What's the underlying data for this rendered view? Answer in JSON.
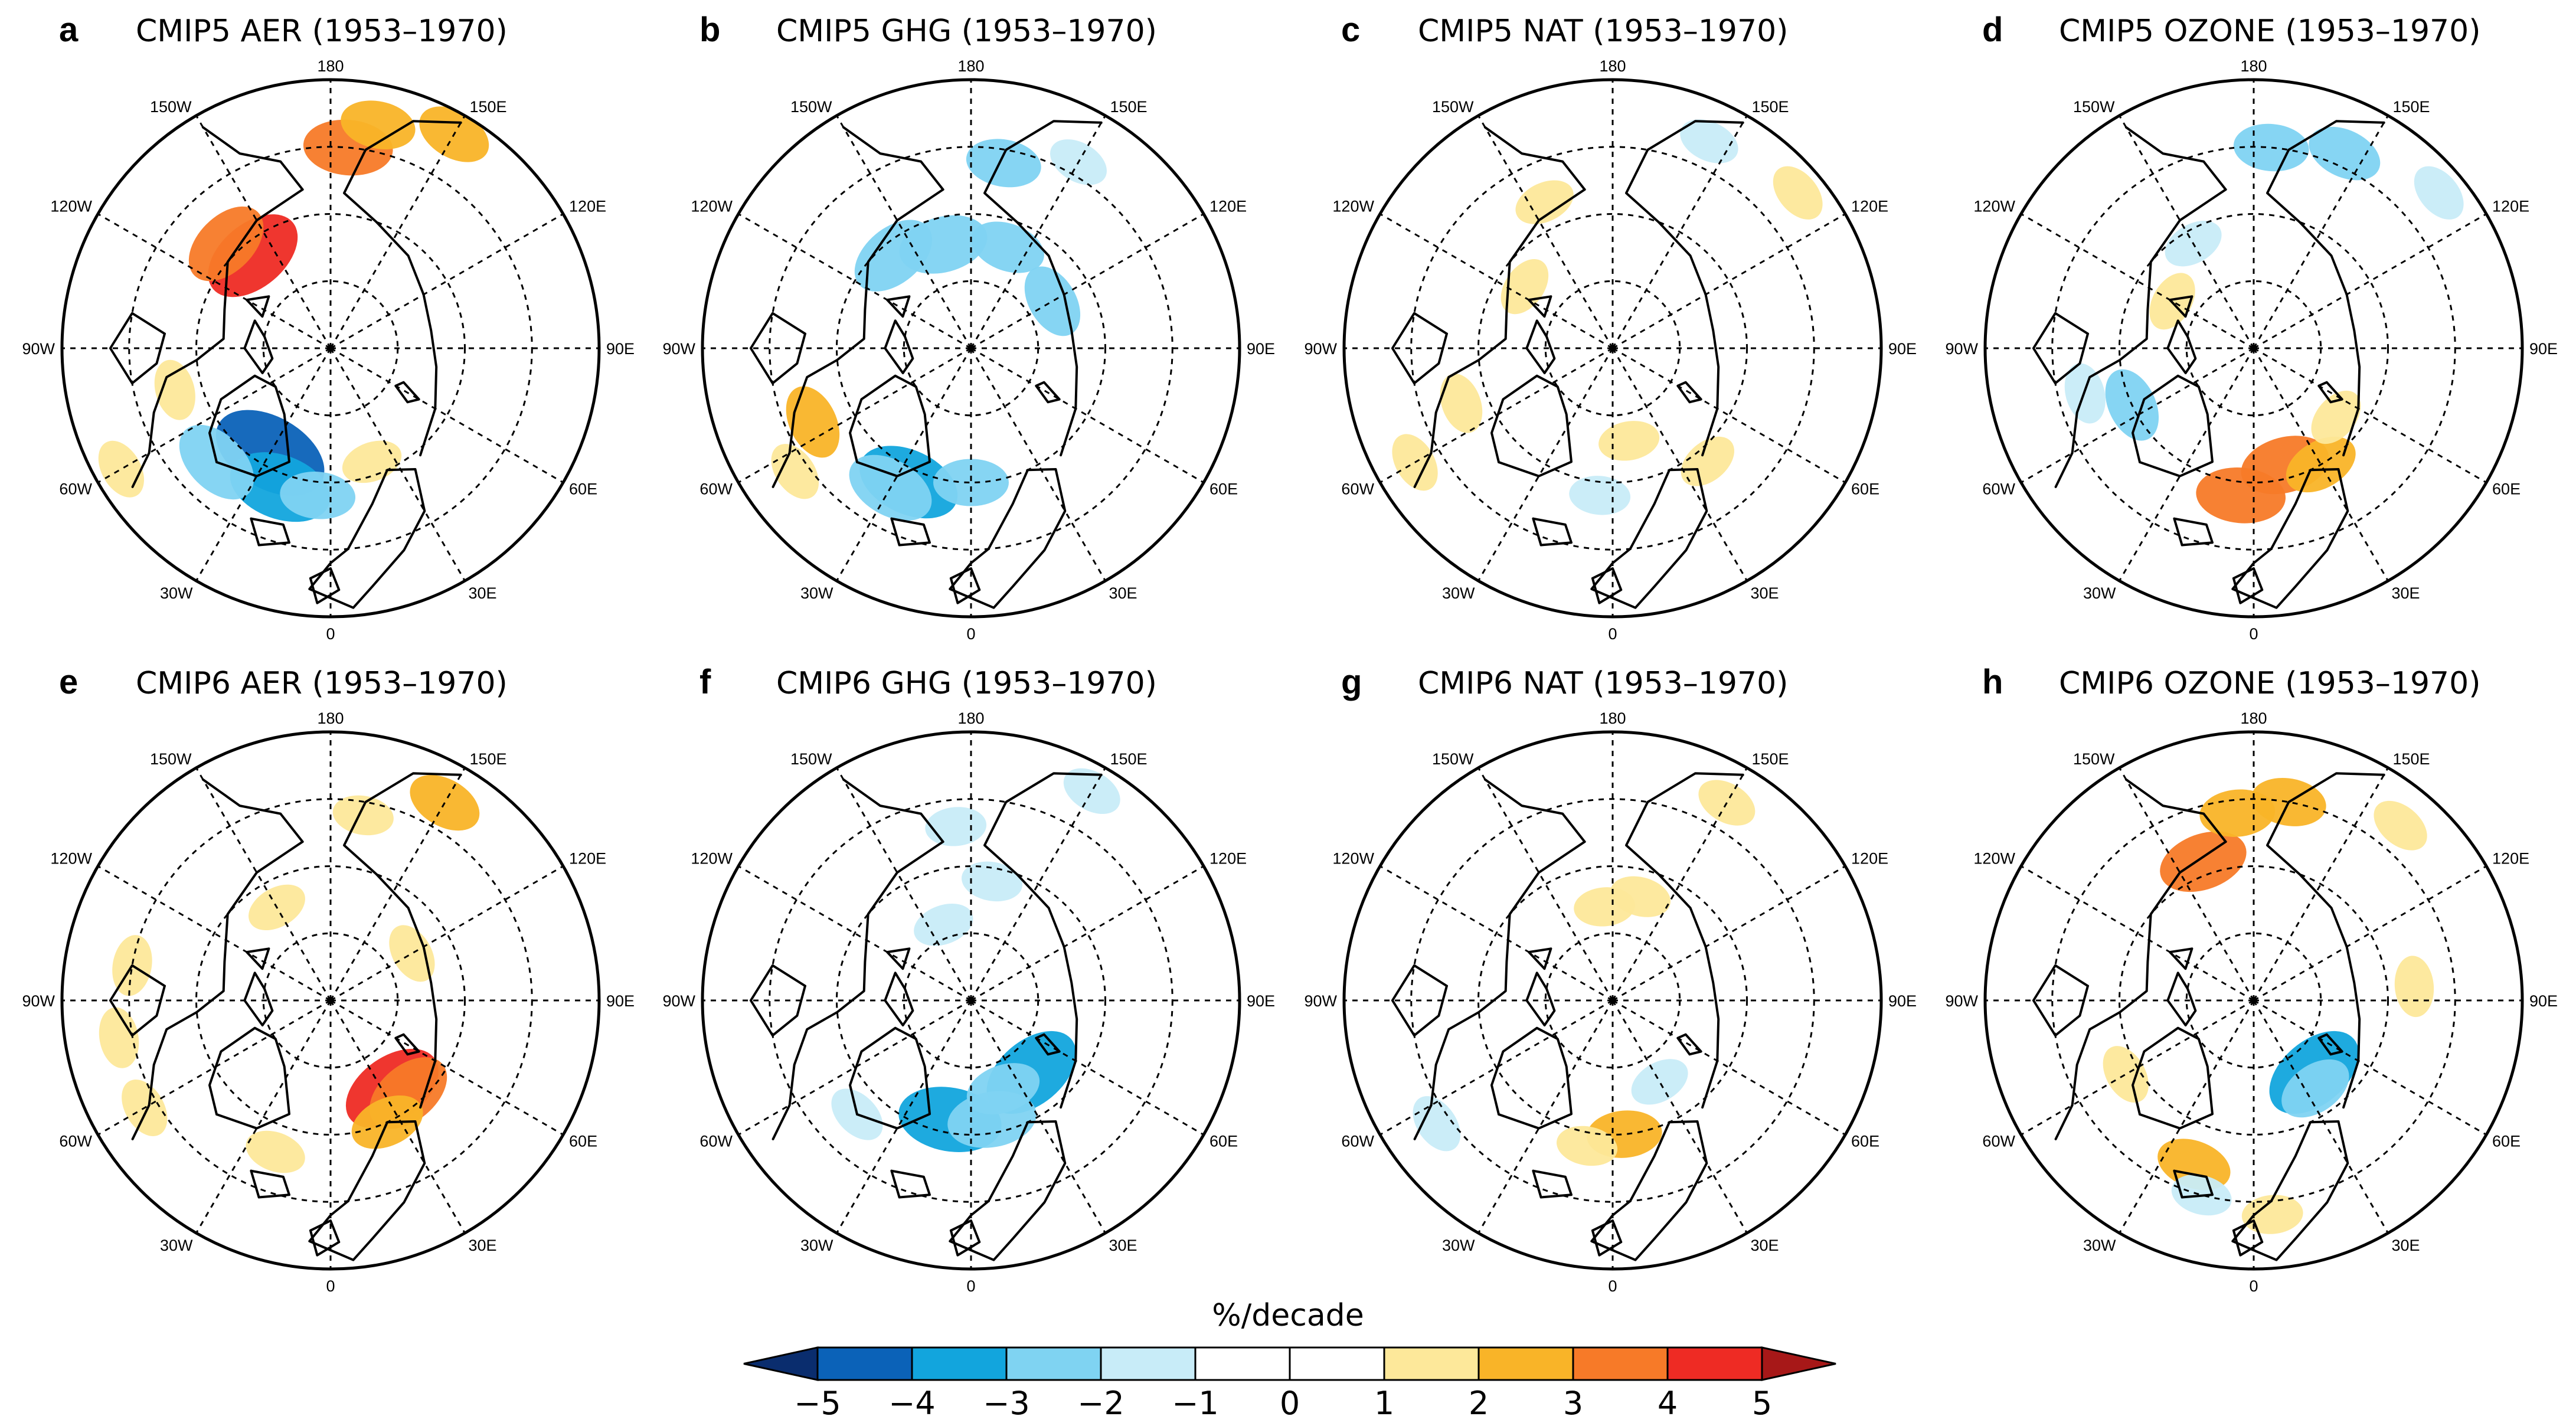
{
  "colorbar": {
    "title": "%/decade",
    "ticks": [
      "−5",
      "−4",
      "−3",
      "−2",
      "−1",
      "0",
      "1",
      "2",
      "3",
      "4",
      "5"
    ],
    "colors": [
      "#0a2d6e",
      "#0b62b8",
      "#12a5dd",
      "#7fd3f2",
      "#c8ecf8",
      "#ffffff",
      "#ffffff",
      "#fde89a",
      "#f9b428",
      "#f77a28",
      "#ee2b24",
      "#a71818"
    ]
  },
  "lon_labels": {
    "top": "180",
    "bottom": "0",
    "left": "90W",
    "right": "90E",
    "w150": "150W",
    "e150": "150E",
    "w120": "120W",
    "e120": "120E",
    "w60": "60W",
    "e60": "60E",
    "w30": "30W",
    "e30": "30E"
  },
  "panels": [
    {
      "letter": "a",
      "title": "CMIP5 AER (1953–1970)",
      "blobs": [
        [
          -30,
          0.45,
          -5
        ],
        [
          -20,
          0.55,
          -4
        ],
        [
          -45,
          0.6,
          -3
        ],
        [
          -5,
          0.55,
          -2
        ],
        [
          20,
          0.45,
          1
        ],
        [
          175,
          0.75,
          3
        ],
        [
          168,
          0.85,
          2
        ],
        [
          150,
          0.92,
          2
        ],
        [
          -140,
          0.45,
          4
        ],
        [
          -135,
          0.55,
          3
        ],
        [
          -60,
          0.9,
          1
        ],
        [
          -75,
          0.6,
          1
        ]
      ]
    },
    {
      "letter": "b",
      "title": "CMIP5 GHG (1953–1970)",
      "blobs": [
        [
          -25,
          0.55,
          -4
        ],
        [
          -30,
          0.6,
          -3
        ],
        [
          0,
          0.5,
          -2
        ],
        [
          160,
          0.4,
          -2
        ],
        [
          -165,
          0.4,
          -3
        ],
        [
          -140,
          0.45,
          -3
        ],
        [
          120,
          0.35,
          -2
        ],
        [
          170,
          0.7,
          -2
        ],
        [
          150,
          0.8,
          -1
        ],
        [
          -65,
          0.65,
          2
        ],
        [
          -55,
          0.8,
          1
        ]
      ]
    },
    {
      "letter": "c",
      "title": "CMIP5 NAT (1953–1970)",
      "blobs": [
        [
          -125,
          0.4,
          1
        ],
        [
          -155,
          0.6,
          1
        ],
        [
          -70,
          0.6,
          1
        ],
        [
          -60,
          0.85,
          1
        ],
        [
          10,
          0.35,
          1
        ],
        [
          40,
          0.55,
          1
        ],
        [
          -5,
          0.55,
          -1
        ],
        [
          155,
          0.85,
          -1
        ],
        [
          130,
          0.9,
          1
        ]
      ]
    },
    {
      "letter": "d",
      "title": "CMIP5 OZONE (1953–1970)",
      "blobs": [
        [
          15,
          0.45,
          3
        ],
        [
          -5,
          0.55,
          3
        ],
        [
          30,
          0.5,
          2
        ],
        [
          50,
          0.4,
          1
        ],
        [
          -65,
          0.5,
          -2
        ],
        [
          -75,
          0.65,
          -1
        ],
        [
          175,
          0.75,
          -2
        ],
        [
          155,
          0.8,
          -2
        ],
        [
          -150,
          0.45,
          -1
        ],
        [
          -120,
          0.35,
          1
        ],
        [
          130,
          0.9,
          -1
        ]
      ]
    },
    {
      "letter": "e",
      "title": "CMIP6 AER (1953–1970)",
      "blobs": [
        [
          35,
          0.4,
          4
        ],
        [
          40,
          0.45,
          3
        ],
        [
          25,
          0.5,
          2
        ],
        [
          -80,
          0.8,
          1
        ],
        [
          -60,
          0.8,
          1
        ],
        [
          -100,
          0.75,
          1
        ],
        [
          -150,
          0.4,
          1
        ],
        [
          120,
          0.35,
          1
        ],
        [
          150,
          0.85,
          2
        ],
        [
          170,
          0.7,
          1
        ],
        [
          -20,
          0.6,
          1
        ]
      ]
    },
    {
      "letter": "f",
      "title": "CMIP6 GHG (1953–1970)",
      "blobs": [
        [
          40,
          0.35,
          -4
        ],
        [
          -10,
          0.45,
          -4
        ],
        [
          10,
          0.45,
          -3
        ],
        [
          20,
          0.35,
          -2
        ],
        [
          -45,
          0.6,
          -1
        ],
        [
          170,
          0.45,
          -1
        ],
        [
          -175,
          0.65,
          -1
        ],
        [
          150,
          0.9,
          -1
        ],
        [
          -160,
          0.3,
          -1
        ]
      ]
    },
    {
      "letter": "g",
      "title": "CMIP6 NAT (1953–1970)",
      "blobs": [
        [
          5,
          0.5,
          2
        ],
        [
          -10,
          0.55,
          1
        ],
        [
          30,
          0.35,
          -1
        ],
        [
          -175,
          0.35,
          1
        ],
        [
          165,
          0.4,
          1
        ],
        [
          150,
          0.85,
          1
        ],
        [
          -55,
          0.8,
          -1
        ]
      ]
    },
    {
      "letter": "h",
      "title": "CMIP6 OZONE (1953–1970)",
      "blobs": [
        [
          40,
          0.35,
          -4
        ],
        [
          35,
          0.4,
          -2
        ],
        [
          -160,
          0.55,
          3
        ],
        [
          -175,
          0.7,
          2
        ],
        [
          170,
          0.75,
          2
        ],
        [
          95,
          0.6,
          1
        ],
        [
          -60,
          0.55,
          1
        ],
        [
          -20,
          0.65,
          2
        ],
        [
          -15,
          0.75,
          -1
        ],
        [
          5,
          0.8,
          1
        ],
        [
          140,
          0.85,
          1
        ]
      ]
    }
  ]
}
